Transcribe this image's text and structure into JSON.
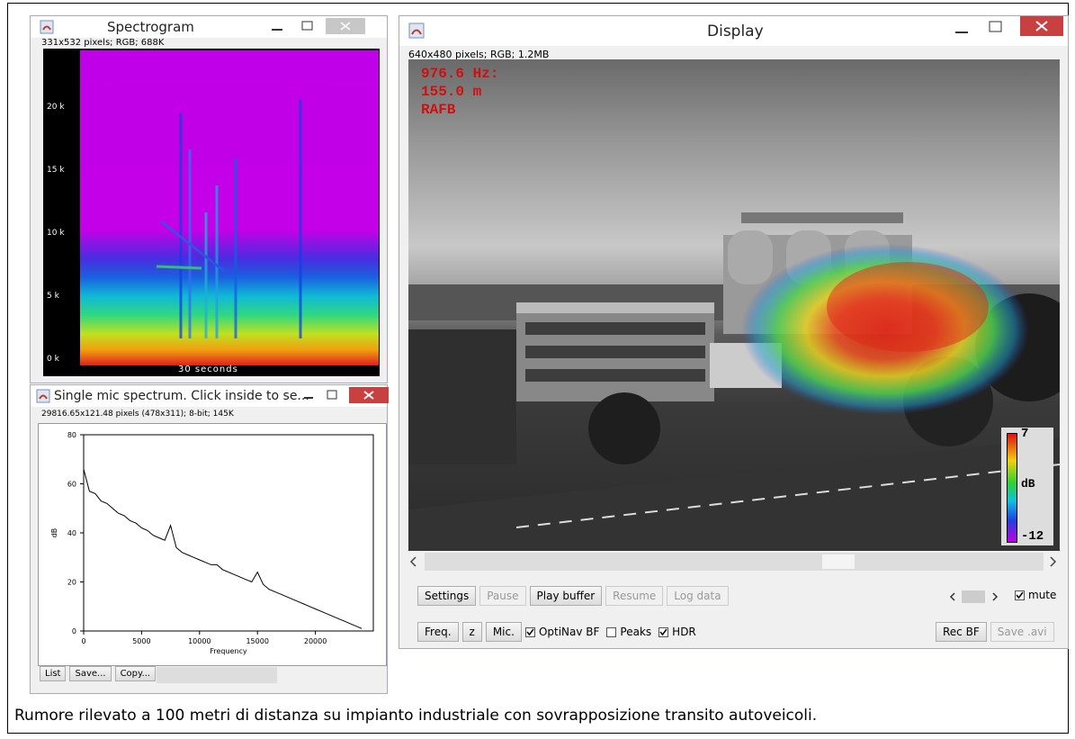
{
  "windows": {
    "spectrogram": {
      "title": "Spectrogram",
      "info": "331x532 pixels; RGB; 688K",
      "y_labels": [
        "20 k",
        "15 k",
        "10 k",
        "5 k",
        "0 k"
      ],
      "x_label": "30 seconds"
    },
    "spectrum": {
      "title": "Single mic spectrum. Click inside to se...",
      "info": "29816.65x121.48 pixels (478x311); 8-bit; 145K",
      "chart": {
        "type": "line",
        "x_label": "Frequency",
        "y_label": "dB",
        "x": [
          0,
          500,
          1000,
          1500,
          2000,
          2500,
          3000,
          3500,
          4000,
          4500,
          5000,
          5500,
          6000,
          6500,
          7000,
          7500,
          8000,
          8500,
          9000,
          9500,
          10000,
          10500,
          11000,
          11500,
          12000,
          12500,
          13000,
          13500,
          14000,
          14500,
          15000,
          15500,
          16000,
          16500,
          17000,
          17500,
          18000,
          18500,
          19000,
          19500,
          20000,
          20500,
          21000,
          21500,
          22000,
          22500,
          23000,
          23500,
          24000
        ],
        "values": [
          66,
          57,
          56,
          53,
          52,
          50,
          48,
          47,
          45,
          44,
          42,
          41,
          39,
          38,
          37,
          43,
          34,
          32,
          31,
          30,
          29,
          28,
          27,
          27,
          25,
          24,
          23,
          22,
          21,
          20,
          24,
          19,
          17,
          16,
          15,
          14,
          13,
          12,
          11,
          10,
          9,
          8,
          7,
          6,
          5,
          4,
          3,
          2,
          1
        ],
        "color": "#000000",
        "xlim": [
          0,
          25000
        ],
        "ylim": [
          0,
          80
        ],
        "xticks": [
          0,
          5000,
          10000,
          15000,
          20000
        ],
        "yticks": [
          0,
          20,
          40,
          60,
          80
        ]
      },
      "buttons": [
        {
          "label": "List",
          "enabled": true
        },
        {
          "label": "Save...",
          "enabled": true
        },
        {
          "label": "Copy...",
          "enabled": true
        }
      ]
    },
    "display": {
      "title": "Display",
      "info": "640x480 pixels; RGB; 1.2MB",
      "overlay": [
        "976.6 Hz:",
        "155.0 m",
        "RAFB"
      ],
      "colorbar": {
        "max": 7,
        "unit": "dB",
        "min": -12
      },
      "buttons_row1": [
        {
          "label": "Settings",
          "enabled": true
        },
        {
          "label": "Pause",
          "enabled": false
        },
        {
          "label": "Play buffer",
          "enabled": true
        },
        {
          "label": "Resume",
          "enabled": false
        },
        {
          "label": "Log data",
          "enabled": false
        }
      ],
      "mute": {
        "label": "mute",
        "checked": true
      },
      "buttons_row2": [
        {
          "label": "Freq.",
          "enabled": true
        },
        {
          "label": "z",
          "enabled": true
        },
        {
          "label": "Mic.",
          "enabled": true
        }
      ],
      "checkboxes": [
        {
          "label": "OptiNav BF",
          "checked": true
        },
        {
          "label": "Peaks",
          "checked": false
        },
        {
          "label": "HDR",
          "checked": true
        }
      ],
      "buttons_right": [
        {
          "label": "Rec BF",
          "enabled": true
        },
        {
          "label": "Save .avi",
          "enabled": false
        }
      ]
    }
  },
  "caption": "Rumore rilevato a 100 metri di distanza su impianto industriale con sovrapposizione transito autoveicoli."
}
